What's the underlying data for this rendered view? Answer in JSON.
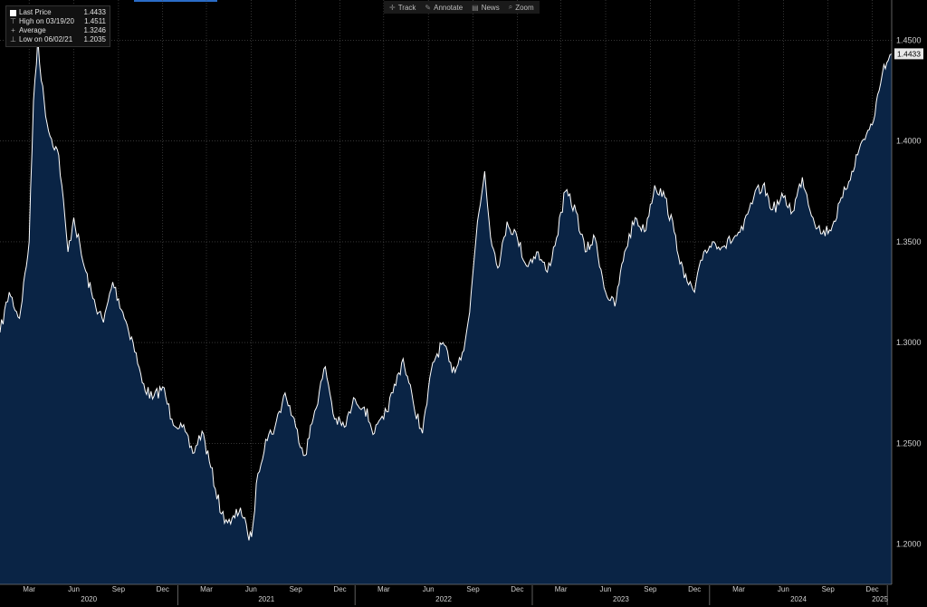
{
  "toolbar": {
    "track_label": "Track",
    "track_icon": "crosshair-icon",
    "annotate_label": "Annotate",
    "annotate_icon": "pencil-icon",
    "news_label": "News",
    "news_icon": "news-icon",
    "zoom_label": "Zoom",
    "zoom_icon": "magnifier-icon"
  },
  "legend": {
    "last_price_label": "Last Price",
    "last_price_value": "1.4433",
    "high_label": "High on 03/19/20",
    "high_value": "1.4511",
    "average_label": "Average",
    "average_value": "1.3246",
    "low_label": "Low on 06/02/21",
    "low_value": "1.2035"
  },
  "last_price_tag": "1.4433",
  "colors": {
    "area_fill": "#0a2445",
    "line": "#ffffff",
    "grid": "#555555",
    "label_bg": "#e8e8e8"
  },
  "chart_data": {
    "type": "area",
    "ylim": [
      1.18,
      1.47
    ],
    "y_ticks": [
      "1.2000",
      "1.2500",
      "1.3000",
      "1.3500",
      "1.4000",
      "1.4500"
    ],
    "x_month_labels": [
      "Mar",
      "Jun",
      "Sep",
      "Dec",
      "Mar",
      "Jun",
      "Sep",
      "Dec",
      "Mar",
      "Jun",
      "Sep",
      "Dec",
      "Mar",
      "Jun",
      "Sep",
      "Dec",
      "Mar",
      "Jun",
      "Sep",
      "Dec"
    ],
    "x_year_labels": [
      "2020",
      "2021",
      "2022",
      "2023",
      "2024",
      "2025"
    ],
    "x_range": [
      "2020-01-01",
      "2025-01-10"
    ],
    "series": [
      {
        "x": [
          "2020-01-01",
          "2020-01-20",
          "2020-02-10",
          "2020-03-01",
          "2020-03-10",
          "2020-03-19",
          "2020-03-26",
          "2020-04-10",
          "2020-05-01",
          "2020-05-20",
          "2020-06-01",
          "2020-06-20",
          "2020-07-10",
          "2020-08-01",
          "2020-08-20",
          "2020-09-10",
          "2020-10-01",
          "2020-10-20",
          "2020-11-10",
          "2020-12-01",
          "2020-12-20",
          "2021-01-10",
          "2021-02-01",
          "2021-02-20",
          "2021-03-10",
          "2021-04-01",
          "2021-04-20",
          "2021-05-10",
          "2021-05-25",
          "2021-06-02",
          "2021-06-15",
          "2021-07-01",
          "2021-07-20",
          "2021-08-10",
          "2021-09-01",
          "2021-09-20",
          "2021-10-10",
          "2021-11-01",
          "2021-11-20",
          "2021-12-10",
          "2022-01-01",
          "2022-01-20",
          "2022-02-10",
          "2022-03-01",
          "2022-03-20",
          "2022-04-10",
          "2022-05-01",
          "2022-05-20",
          "2022-06-10",
          "2022-07-01",
          "2022-07-20",
          "2022-08-10",
          "2022-08-25",
          "2022-09-10",
          "2022-09-25",
          "2022-10-10",
          "2022-10-25",
          "2022-11-10",
          "2022-12-01",
          "2022-12-20",
          "2023-01-10",
          "2023-02-01",
          "2023-02-20",
          "2023-03-10",
          "2023-04-01",
          "2023-04-20",
          "2023-05-10",
          "2023-06-01",
          "2023-06-20",
          "2023-07-10",
          "2023-08-01",
          "2023-08-20",
          "2023-09-10",
          "2023-10-01",
          "2023-10-20",
          "2023-11-10",
          "2023-12-01",
          "2023-12-20",
          "2024-01-10",
          "2024-02-01",
          "2024-02-20",
          "2024-03-10",
          "2024-04-01",
          "2024-04-20",
          "2024-05-10",
          "2024-06-01",
          "2024-06-20",
          "2024-07-10",
          "2024-08-01",
          "2024-08-20",
          "2024-09-10",
          "2024-10-01",
          "2024-10-20",
          "2024-11-10",
          "2024-12-01",
          "2024-12-15",
          "2024-12-25",
          "2025-01-03",
          "2025-01-10"
        ],
        "values": [
          1.305,
          1.325,
          1.312,
          1.35,
          1.42,
          1.451,
          1.43,
          1.405,
          1.393,
          1.345,
          1.362,
          1.34,
          1.322,
          1.31,
          1.33,
          1.315,
          1.3,
          1.28,
          1.272,
          1.278,
          1.262,
          1.258,
          1.245,
          1.256,
          1.238,
          1.215,
          1.21,
          1.218,
          1.205,
          1.2035,
          1.235,
          1.252,
          1.258,
          1.275,
          1.258,
          1.244,
          1.266,
          1.288,
          1.262,
          1.258,
          1.272,
          1.268,
          1.255,
          1.262,
          1.275,
          1.292,
          1.27,
          1.255,
          1.29,
          1.3,
          1.285,
          1.295,
          1.315,
          1.36,
          1.385,
          1.348,
          1.338,
          1.36,
          1.352,
          1.338,
          1.345,
          1.335,
          1.352,
          1.375,
          1.365,
          1.345,
          1.352,
          1.325,
          1.318,
          1.345,
          1.362,
          1.355,
          1.378,
          1.372,
          1.355,
          1.332,
          1.325,
          1.345,
          1.35,
          1.348,
          1.352,
          1.356,
          1.372,
          1.378,
          1.366,
          1.372,
          1.365,
          1.382,
          1.362,
          1.354,
          1.358,
          1.372,
          1.385,
          1.4,
          1.408,
          1.425,
          1.438,
          1.44,
          1.4433
        ]
      }
    ]
  }
}
